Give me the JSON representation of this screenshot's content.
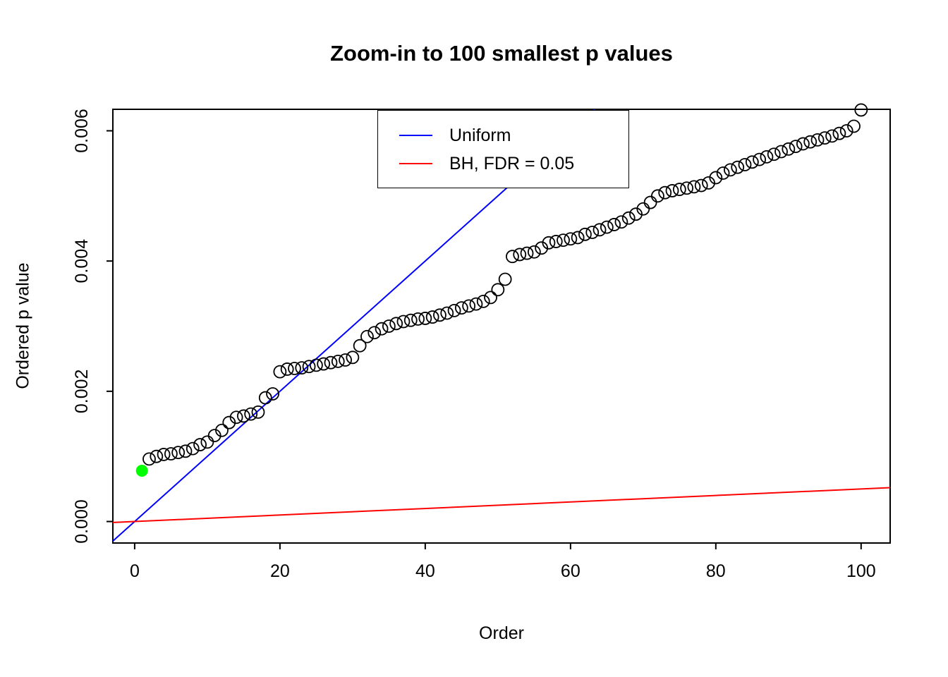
{
  "chart_data": {
    "type": "scatter",
    "title": "Zoom-in to 100 smallest p values",
    "xlabel": "Order",
    "ylabel": "Ordered p value",
    "xlim": [
      -3,
      104
    ],
    "ylim": [
      -0.00033,
      0.00633
    ],
    "x_ticks": {
      "values": [
        0,
        20,
        40,
        60,
        80,
        100
      ],
      "labels": [
        "0",
        "20",
        "40",
        "60",
        "80",
        "100"
      ]
    },
    "y_ticks": {
      "values": [
        0,
        0.002,
        0.004,
        0.006
      ],
      "labels": [
        "0.000",
        "0.002",
        "0.004",
        "0.006"
      ]
    },
    "grid": false,
    "points": {
      "x_start": 1,
      "ordered_p_values": [
        0.00078,
        0.00096,
        0.001,
        0.00103,
        0.00104,
        0.00106,
        0.00108,
        0.00112,
        0.00118,
        0.00122,
        0.00132,
        0.0014,
        0.00152,
        0.0016,
        0.00162,
        0.00165,
        0.00168,
        0.0019,
        0.00196,
        0.0023,
        0.00234,
        0.00235,
        0.00236,
        0.00238,
        0.0024,
        0.00242,
        0.00244,
        0.00246,
        0.00248,
        0.00252,
        0.0027,
        0.00284,
        0.0029,
        0.00296,
        0.003,
        0.00304,
        0.00307,
        0.00309,
        0.00311,
        0.00312,
        0.00314,
        0.00317,
        0.0032,
        0.00324,
        0.00328,
        0.00331,
        0.00334,
        0.00338,
        0.00344,
        0.00356,
        0.00372,
        0.00407,
        0.0041,
        0.00412,
        0.00414,
        0.0042,
        0.00428,
        0.0043,
        0.00432,
        0.00434,
        0.00436,
        0.00441,
        0.00444,
        0.00448,
        0.00452,
        0.00456,
        0.0046,
        0.00466,
        0.00472,
        0.0048,
        0.0049,
        0.005,
        0.00505,
        0.00508,
        0.0051,
        0.00512,
        0.00514,
        0.00516,
        0.0052,
        0.00528,
        0.00535,
        0.0054,
        0.00544,
        0.00548,
        0.00552,
        0.00556,
        0.0056,
        0.00564,
        0.00568,
        0.00572,
        0.00576,
        0.0058,
        0.00583,
        0.00586,
        0.00589,
        0.00592,
        0.00596,
        0.006,
        0.00607,
        0.00632
      ],
      "marker": "open-circle",
      "marker_color": "#000000"
    },
    "highlight_point": {
      "x": 1,
      "y": 0.00078,
      "color": "#00FF00",
      "marker": "filled-circle"
    },
    "lines": [
      {
        "name": "Uniform",
        "color": "#0000FF",
        "slope": 0.0001,
        "intercept": 0
      },
      {
        "name": "BH, FDR = 0.05",
        "color": "#FF0000",
        "slope": 5e-06,
        "intercept": 0
      }
    ],
    "legend": {
      "position": "top-center",
      "entries": [
        {
          "label": "Uniform",
          "color": "#0000FF"
        },
        {
          "label": "BH, FDR = 0.05",
          "color": "#FF0000"
        }
      ]
    }
  }
}
